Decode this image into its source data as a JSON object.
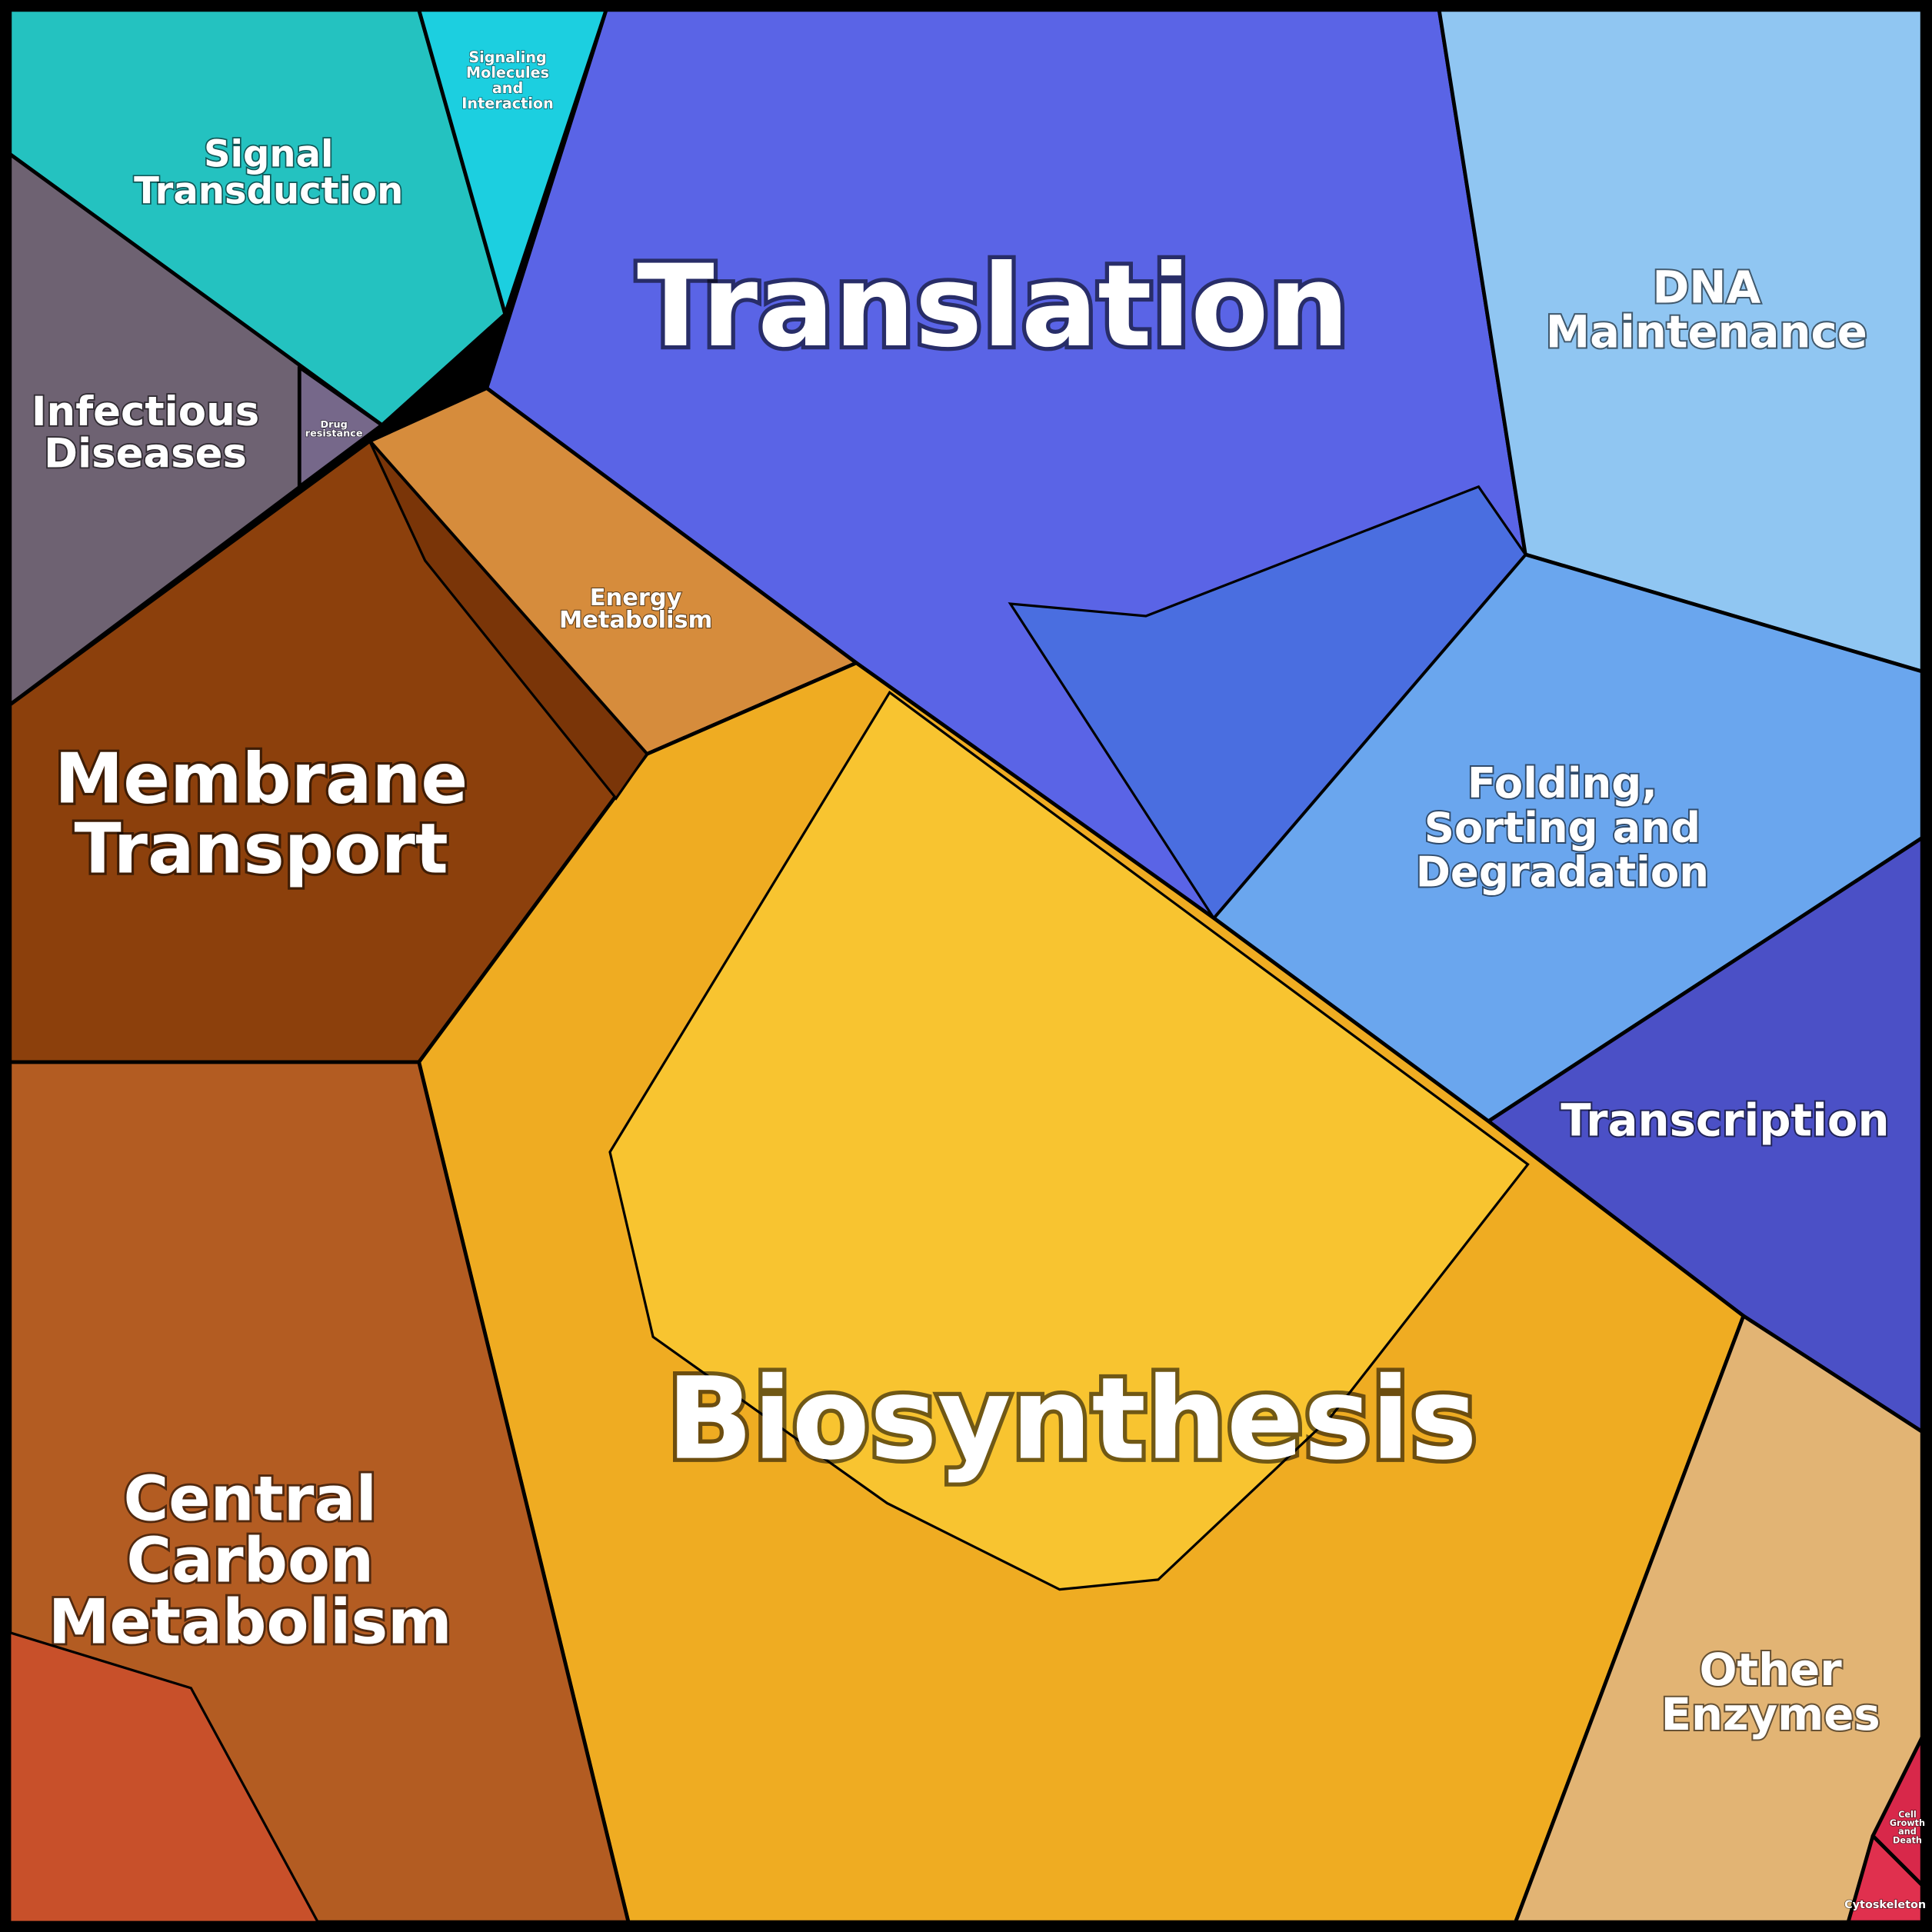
{
  "regions": [
    {
      "label": [
        "Signal",
        "Transduction"
      ]
    },
    {
      "label": [
        "Signaling",
        "Molecules",
        "and",
        "Interaction"
      ]
    },
    {
      "label": [
        "Infectious",
        "Diseases"
      ]
    },
    {
      "label": [
        "Drug",
        "resistance"
      ]
    },
    {
      "label": [
        "Translation"
      ]
    },
    {
      "label": [
        "DNA",
        "Maintenance"
      ]
    },
    {
      "label": [
        "Energy",
        "Metabolism"
      ]
    },
    {
      "label": [
        "Membrane",
        "Transport"
      ]
    },
    {
      "label": [
        "Folding,",
        "Sorting and",
        "Degradation"
      ]
    },
    {
      "label": [
        "Transcription"
      ]
    },
    {
      "label": [
        "Biosynthesis"
      ]
    },
    {
      "label": [
        "Central",
        "Carbon",
        "Metabolism"
      ]
    },
    {
      "label": [
        "Other",
        "Enzymes"
      ]
    },
    {
      "label": [
        "Cell",
        "Growth",
        "and",
        "Death"
      ]
    },
    {
      "label": [
        "Cytoskeleton"
      ]
    }
  ]
}
